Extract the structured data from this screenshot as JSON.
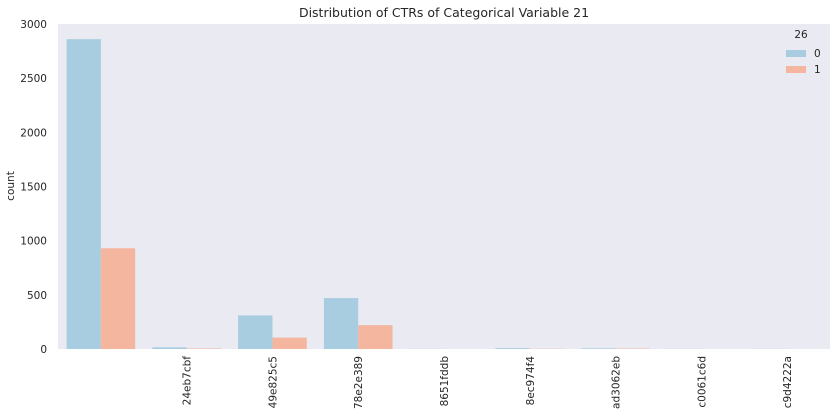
{
  "chart_data": {
    "type": "bar",
    "title": "Distribution of CTRs of Categorical Variable 21",
    "xlabel": "",
    "ylabel": "count",
    "ylim": [
      0,
      3000
    ],
    "yticks": [
      0,
      500,
      1000,
      1500,
      2000,
      2500,
      3000
    ],
    "grid": false,
    "background": "#eaeaf2",
    "categories": [
      "",
      "24eb7cbf",
      "49e825c5",
      "78e2e389",
      "8651fddb",
      "8ec974f4",
      "ad3062eb",
      "c0061c6d",
      "c9d4222a"
    ],
    "legend": {
      "title": "26",
      "placement": "top-right"
    },
    "series": [
      {
        "name": "0",
        "color": "#a8cde0",
        "values": [
          2860,
          15,
          310,
          470,
          1,
          8,
          6,
          1,
          1
        ]
      },
      {
        "name": "1",
        "color": "#f4b69f",
        "values": [
          930,
          5,
          105,
          220,
          0,
          2,
          4,
          0,
          0
        ]
      }
    ]
  }
}
